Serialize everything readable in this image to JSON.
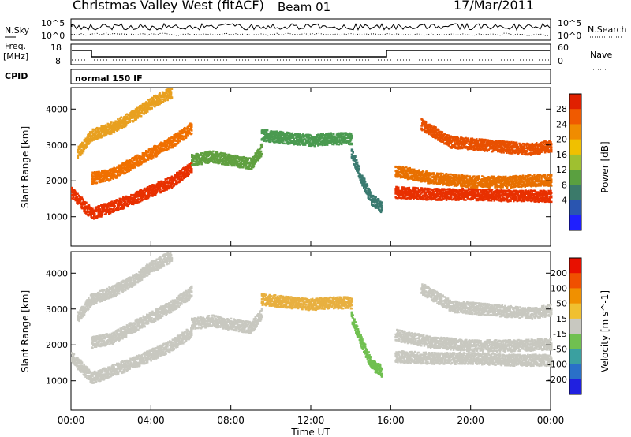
{
  "header": {
    "title": "Christmas Valley West (fitACF)",
    "beam": "Beam 01",
    "date": "17/Mar/2011"
  },
  "panels": {
    "nsky": {
      "left_label": "N.Sky",
      "ticks_left": [
        "10^5",
        "10^0"
      ],
      "ticks_right": [
        "10^5",
        "10^0"
      ],
      "right_label": "N.Search"
    },
    "freq": {
      "left_label_1": "Freq.",
      "left_label_2": "[MHz]",
      "ticks_left": [
        "18",
        "8"
      ],
      "ticks_right": [
        "60",
        "0"
      ],
      "right_label": "Nave"
    },
    "cpid": {
      "label": "CPID",
      "mode": "normal 150 IF"
    }
  },
  "chart_data": [
    {
      "type": "heatmap",
      "name": "power",
      "ylabel": "Slant Range [km]",
      "yticks": [
        "4000",
        "3000",
        "2000",
        "1000"
      ],
      "ylim": [
        180,
        4600
      ],
      "xlim": [
        0,
        24
      ],
      "colorbar": {
        "label": "Power [dB]",
        "ticks": [
          "28",
          "24",
          "20",
          "16",
          "12",
          "8",
          "4"
        ],
        "colors": [
          "#1f1fff",
          "#2a55b0",
          "#3b7a6a",
          "#5aa040",
          "#9fc030",
          "#f0c000",
          "#f08c00",
          "#f05a00",
          "#e02000"
        ]
      },
      "bands": [
        {
          "x": [
            0,
            1,
            2,
            3,
            4,
            5,
            6
          ],
          "y": [
            1700,
            1100,
            1300,
            1500,
            1750,
            2000,
            2400
          ],
          "color": "#e83000"
        },
        {
          "x": [
            1,
            2,
            3,
            4,
            5,
            6
          ],
          "y": [
            2100,
            2200,
            2500,
            2800,
            3100,
            3500
          ],
          "color": "#f07000"
        },
        {
          "x": [
            0.3,
            1,
            2,
            3,
            4,
            5
          ],
          "y": [
            2800,
            3300,
            3500,
            3800,
            4200,
            4500
          ],
          "color": "#e8a020"
        },
        {
          "x": [
            6,
            7,
            8,
            9,
            9.5
          ],
          "y": [
            2600,
            2700,
            2600,
            2500,
            2900
          ],
          "color": "#60a040"
        },
        {
          "x": [
            9.5,
            11,
            12,
            13,
            14
          ],
          "y": [
            3300,
            3200,
            3150,
            3200,
            3200
          ],
          "color": "#4a9a50"
        },
        {
          "x": [
            14,
            14.5,
            15,
            15.5
          ],
          "y": [
            2800,
            2100,
            1500,
            1300
          ],
          "color": "#3a7a70"
        },
        {
          "x": [
            16.2,
            18,
            20,
            22,
            24
          ],
          "y": [
            1700,
            1650,
            1650,
            1600,
            1600
          ],
          "color": "#e83000"
        },
        {
          "x": [
            16.2,
            18,
            20,
            22,
            24
          ],
          "y": [
            2300,
            2100,
            2000,
            2000,
            2050
          ],
          "color": "#e87000"
        },
        {
          "x": [
            17.5,
            19,
            21,
            23,
            24
          ],
          "y": [
            3600,
            3100,
            3000,
            2900,
            3000
          ],
          "color": "#e85000"
        }
      ]
    },
    {
      "type": "heatmap",
      "name": "velocity",
      "xlabel": "Time UT",
      "ylabel": "Slant Range [km]",
      "yticks": [
        "4000",
        "3000",
        "2000",
        "1000"
      ],
      "ylim": [
        180,
        4600
      ],
      "xlim": [
        0,
        24
      ],
      "xticks": [
        "00:00",
        "04:00",
        "08:00",
        "12:00",
        "16:00",
        "20:00",
        "00:00"
      ],
      "colorbar": {
        "label": "Velocity [m s^-1]",
        "ticks": [
          "200",
          "100",
          "50",
          "15",
          "-15",
          "-50",
          "-100",
          "-200"
        ],
        "colors": [
          "#2020e0",
          "#2a70c8",
          "#3aa0a0",
          "#70c050",
          "#c8c8c0",
          "#f0c030",
          "#f09000",
          "#f05000",
          "#e81000"
        ]
      },
      "bands": [
        {
          "x": [
            0,
            1,
            2,
            3,
            4,
            5,
            6
          ],
          "y": [
            1700,
            1100,
            1300,
            1500,
            1750,
            2000,
            2400
          ],
          "color": "#c8c8c0"
        },
        {
          "x": [
            1,
            2,
            3,
            4,
            5,
            6
          ],
          "y": [
            2100,
            2200,
            2500,
            2800,
            3100,
            3500
          ],
          "color": "#c8c8c0"
        },
        {
          "x": [
            0.3,
            1,
            2,
            3,
            4,
            5
          ],
          "y": [
            2800,
            3300,
            3500,
            3800,
            4200,
            4500
          ],
          "color": "#c8c8c0"
        },
        {
          "x": [
            6,
            7,
            8,
            9,
            9.5
          ],
          "y": [
            2600,
            2700,
            2600,
            2500,
            2900
          ],
          "color": "#c8c8c0"
        },
        {
          "x": [
            9.5,
            11,
            12,
            13,
            14
          ],
          "y": [
            3300,
            3200,
            3150,
            3200,
            3200
          ],
          "color": "#e8b040"
        },
        {
          "x": [
            14,
            14.5,
            15,
            15.5
          ],
          "y": [
            2800,
            2100,
            1500,
            1300
          ],
          "color": "#70c050"
        },
        {
          "x": [
            16.2,
            18,
            20,
            22,
            24
          ],
          "y": [
            1700,
            1650,
            1650,
            1600,
            1600
          ],
          "color": "#c8c8c0"
        },
        {
          "x": [
            16.2,
            18,
            20,
            22,
            24
          ],
          "y": [
            2300,
            2100,
            2000,
            2000,
            2050
          ],
          "color": "#c8c8c0"
        },
        {
          "x": [
            17.5,
            19,
            21,
            23,
            24
          ],
          "y": [
            3600,
            3100,
            3000,
            2900,
            3000
          ],
          "color": "#c8c8c0"
        }
      ]
    }
  ]
}
